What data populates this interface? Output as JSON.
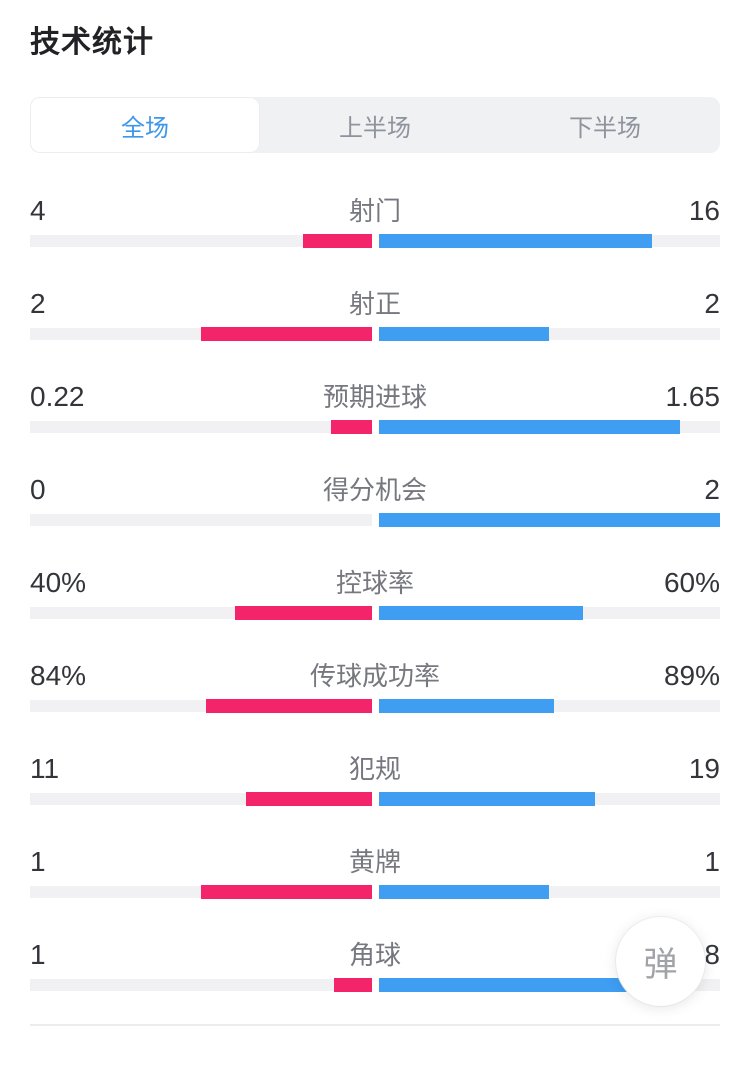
{
  "page": {
    "title": "技术统计"
  },
  "tabs": {
    "items": [
      {
        "label": "全场",
        "active": true
      },
      {
        "label": "上半场",
        "active": false
      },
      {
        "label": "下半场",
        "active": false
      }
    ]
  },
  "colors": {
    "home": "#f4246b",
    "away": "#3f9df2",
    "track": "#f1f1f3",
    "tab_bg": "#f0f1f3",
    "tab_active_text": "#3e97e8",
    "tab_inactive_text": "#8e939d"
  },
  "floating_button": {
    "label": "弹"
  },
  "chart_data": {
    "type": "bar",
    "description": "Paired horizontal comparison bars, home (pink, left) vs away (blue, right); each side filled proportionally to value/(home+away)",
    "rows": [
      {
        "label": "射门",
        "home": "4",
        "away": "16"
      },
      {
        "label": "射正",
        "home": "2",
        "away": "2"
      },
      {
        "label": "预期进球",
        "home": "0.22",
        "away": "1.65"
      },
      {
        "label": "得分机会",
        "home": "0",
        "away": "2"
      },
      {
        "label": "控球率",
        "home": "40%",
        "away": "60%"
      },
      {
        "label": "传球成功率",
        "home": "84%",
        "away": "89%"
      },
      {
        "label": "犯规",
        "home": "11",
        "away": "19"
      },
      {
        "label": "黄牌",
        "home": "1",
        "away": "1"
      },
      {
        "label": "角球",
        "home": "1",
        "away": "8"
      }
    ]
  }
}
